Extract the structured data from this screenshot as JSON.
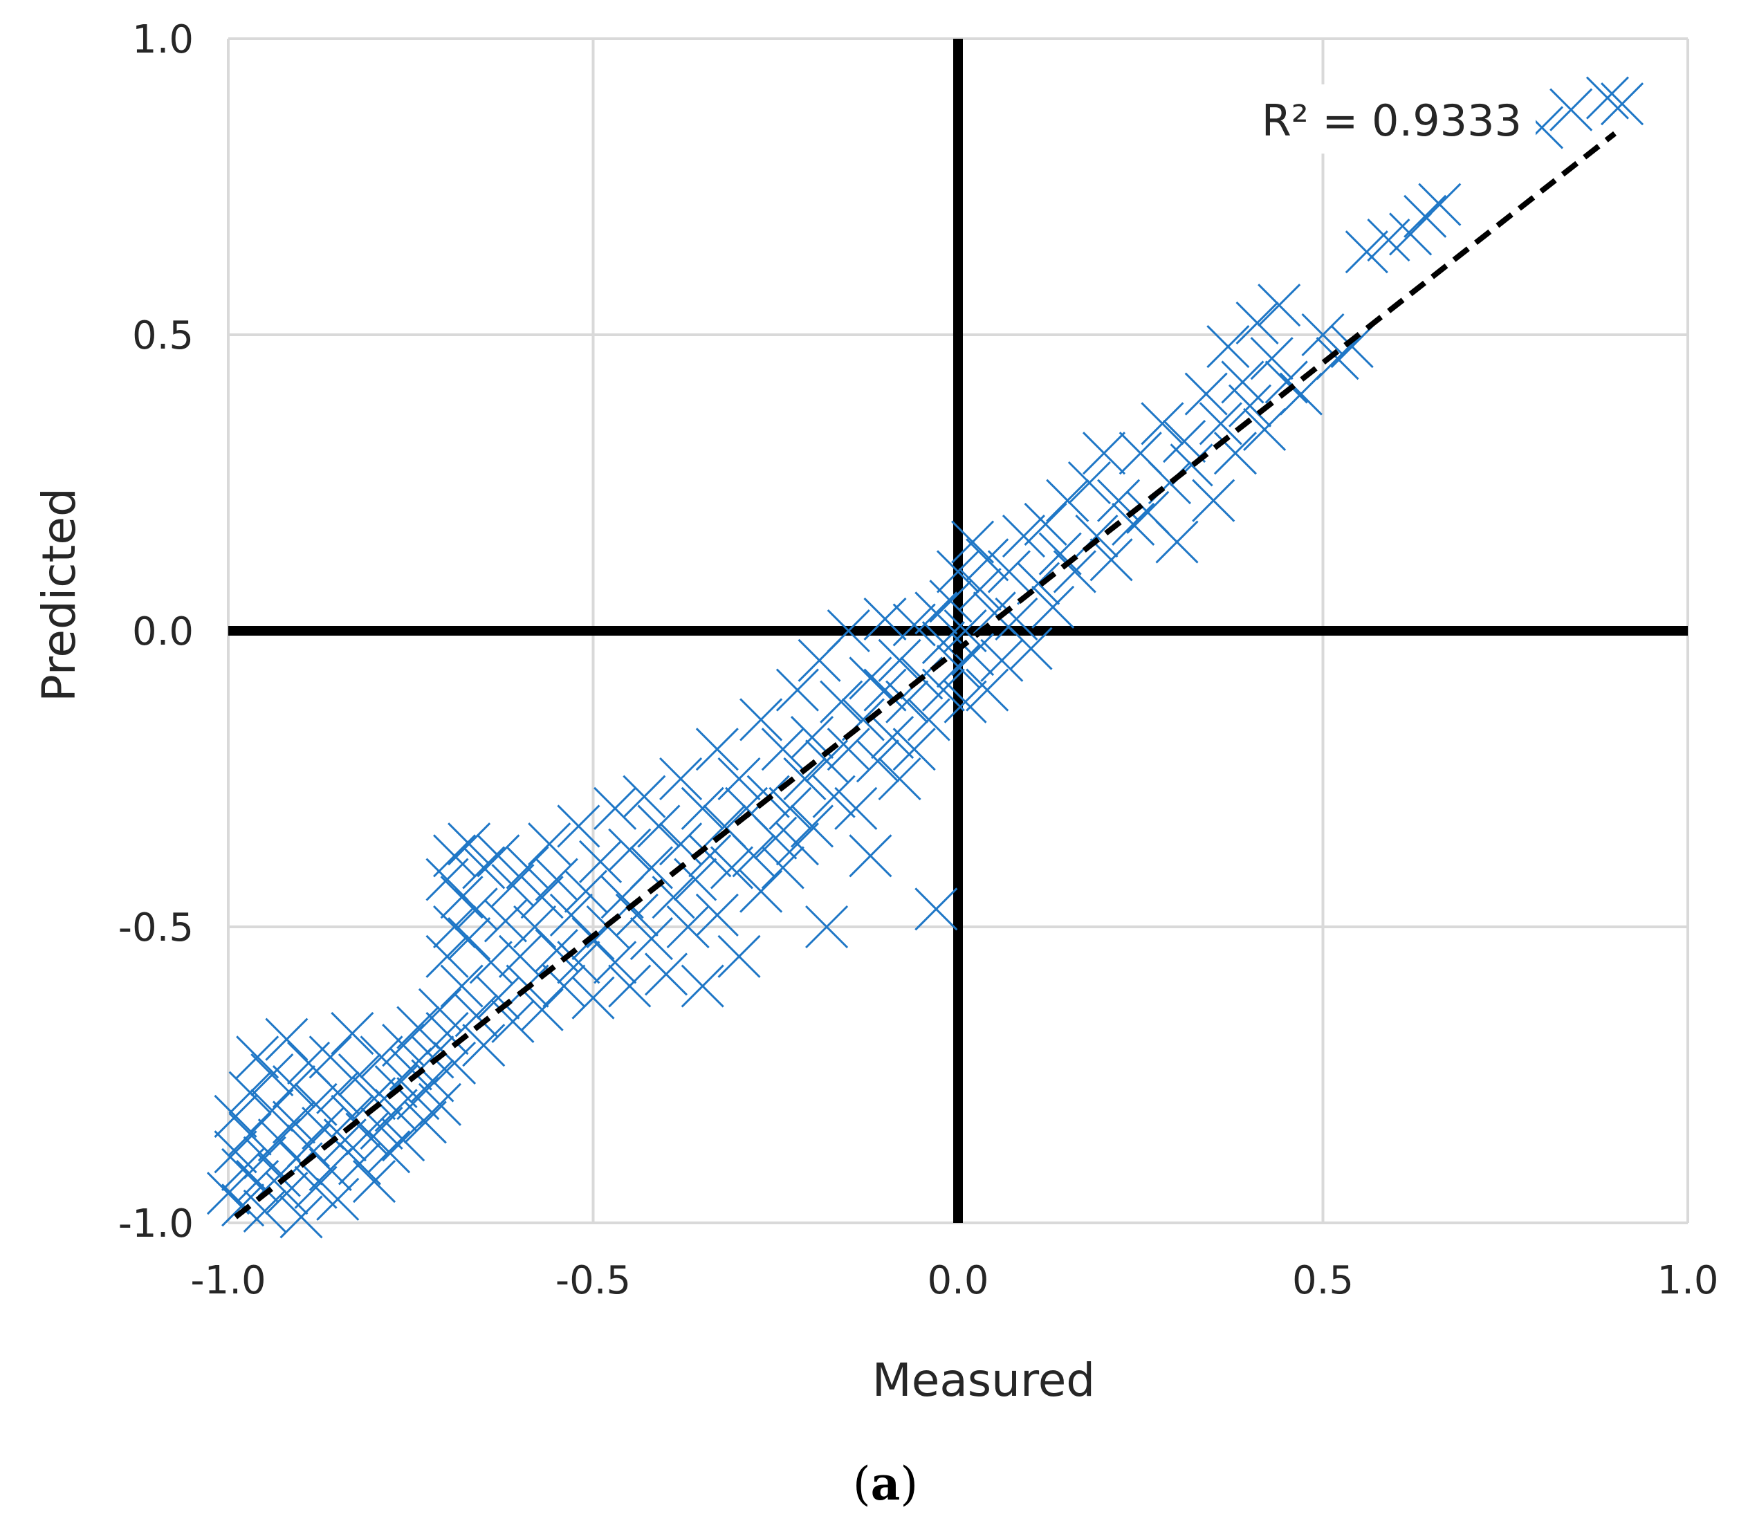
{
  "chart_data": {
    "type": "scatter",
    "xlabel": "Measured",
    "ylabel": "Predicted",
    "xlim": [
      -1.0,
      1.0
    ],
    "ylim": [
      -1.0,
      1.0
    ],
    "x_ticks": [
      -1.0,
      -0.5,
      0.0,
      0.5,
      1.0
    ],
    "y_ticks": [
      -1.0,
      -0.5,
      0.0,
      0.5,
      1.0
    ],
    "x_tick_labels": [
      "-1.0",
      "-0.5",
      "0.0",
      "0.5",
      "1.0"
    ],
    "y_tick_labels": [
      "-1.0",
      "-0.5",
      "0.0",
      "0.5",
      "1.0"
    ],
    "grid": true,
    "marker": "x",
    "marker_color": "#1f77c6",
    "zero_line_color": "#000000",
    "trendline": {
      "style": "dashed",
      "color": "#000000",
      "x": [
        -0.99,
        0.9
      ],
      "y": [
        -0.99,
        0.84
      ],
      "r_squared_label": "R² = 0.9333"
    },
    "points": [
      [
        -1.0,
        -0.95
      ],
      [
        -0.99,
        -0.88
      ],
      [
        -0.99,
        -0.82
      ],
      [
        -0.98,
        -0.97
      ],
      [
        -0.98,
        -0.91
      ],
      [
        -0.97,
        -0.85
      ],
      [
        -0.97,
        -0.78
      ],
      [
        -0.96,
        -0.93
      ],
      [
        -0.96,
        -0.72
      ],
      [
        -0.95,
        -0.89
      ],
      [
        -0.95,
        -0.98
      ],
      [
        -0.94,
        -0.81
      ],
      [
        -0.94,
        -0.75
      ],
      [
        -0.93,
        -0.92
      ],
      [
        -0.93,
        -0.86
      ],
      [
        -0.92,
        -0.69
      ],
      [
        -0.92,
        -0.95
      ],
      [
        -0.91,
        -0.83
      ],
      [
        -0.91,
        -0.77
      ],
      [
        -0.9,
        -0.9
      ],
      [
        -0.9,
        -0.99
      ],
      [
        -0.89,
        -0.73
      ],
      [
        -0.89,
        -0.87
      ],
      [
        -0.88,
        -0.8
      ],
      [
        -0.88,
        -0.94
      ],
      [
        -0.87,
        -0.84
      ],
      [
        -0.86,
        -0.72
      ],
      [
        -0.86,
        -0.91
      ],
      [
        -0.85,
        -0.78
      ],
      [
        -0.85,
        -0.96
      ],
      [
        -0.84,
        -0.86
      ],
      [
        -0.83,
        -0.68
      ],
      [
        -0.83,
        -0.82
      ],
      [
        -0.82,
        -0.9
      ],
      [
        -0.82,
        -0.75
      ],
      [
        -0.81,
        -0.85
      ],
      [
        -0.8,
        -0.79
      ],
      [
        -0.8,
        -0.93
      ],
      [
        -0.79,
        -0.72
      ],
      [
        -0.79,
        -0.84
      ],
      [
        -0.78,
        -0.88
      ],
      [
        -0.77,
        -0.77
      ],
      [
        -0.77,
        -0.81
      ],
      [
        -0.76,
        -0.7
      ],
      [
        -0.76,
        -0.86
      ],
      [
        -0.75,
        -0.74
      ],
      [
        -0.74,
        -0.79
      ],
      [
        -0.74,
        -0.67
      ],
      [
        -0.73,
        -0.83
      ],
      [
        -0.72,
        -0.72
      ],
      [
        -0.72,
        -0.76
      ],
      [
        -0.71,
        -0.64
      ],
      [
        -0.71,
        -0.8
      ],
      [
        -0.7,
        -0.42
      ],
      [
        -0.7,
        -0.55
      ],
      [
        -0.7,
        -0.68
      ],
      [
        -0.69,
        -0.38
      ],
      [
        -0.69,
        -0.5
      ],
      [
        -0.69,
        -0.73
      ],
      [
        -0.68,
        -0.45
      ],
      [
        -0.68,
        -0.6
      ],
      [
        -0.67,
        -0.36
      ],
      [
        -0.67,
        -0.52
      ],
      [
        -0.66,
        -0.65
      ],
      [
        -0.66,
        -0.47
      ],
      [
        -0.65,
        -0.4
      ],
      [
        -0.65,
        -0.7
      ],
      [
        -0.64,
        -0.56
      ],
      [
        -0.63,
        -0.38
      ],
      [
        -0.63,
        -0.62
      ],
      [
        -0.62,
        -0.49
      ],
      [
        -0.61,
        -0.43
      ],
      [
        -0.61,
        -0.66
      ],
      [
        -0.6,
        -0.55
      ],
      [
        -0.59,
        -0.4
      ],
      [
        -0.59,
        -0.6
      ],
      [
        -0.58,
        -0.5
      ],
      [
        -0.57,
        -0.45
      ],
      [
        -0.57,
        -0.64
      ],
      [
        -0.56,
        -0.36
      ],
      [
        -0.55,
        -0.54
      ],
      [
        -0.55,
        -0.42
      ],
      [
        -0.54,
        -0.6
      ],
      [
        -0.53,
        -0.48
      ],
      [
        -0.52,
        -0.33
      ],
      [
        -0.52,
        -0.56
      ],
      [
        -0.51,
        -0.44
      ],
      [
        -0.5,
        -0.52
      ],
      [
        -0.5,
        -0.62
      ],
      [
        -0.49,
        -0.39
      ],
      [
        -0.48,
        -0.5
      ],
      [
        -0.47,
        -0.3
      ],
      [
        -0.47,
        -0.56
      ],
      [
        -0.46,
        -0.45
      ],
      [
        -0.45,
        -0.37
      ],
      [
        -0.45,
        -0.6
      ],
      [
        -0.44,
        -0.48
      ],
      [
        -0.43,
        -0.28
      ],
      [
        -0.42,
        -0.52
      ],
      [
        -0.42,
        -0.4
      ],
      [
        -0.41,
        -0.33
      ],
      [
        -0.4,
        -0.58
      ],
      [
        -0.39,
        -0.45
      ],
      [
        -0.38,
        -0.25
      ],
      [
        -0.38,
        -0.36
      ],
      [
        -0.37,
        -0.5
      ],
      [
        -0.36,
        -0.42
      ],
      [
        -0.35,
        -0.3
      ],
      [
        -0.35,
        -0.6
      ],
      [
        -0.34,
        -0.38
      ],
      [
        -0.33,
        -0.2
      ],
      [
        -0.33,
        -0.48
      ],
      [
        -0.32,
        -0.33
      ],
      [
        -0.31,
        -0.4
      ],
      [
        -0.3,
        -0.25
      ],
      [
        -0.3,
        -0.55
      ],
      [
        -0.29,
        -0.3
      ],
      [
        -0.28,
        -0.38
      ],
      [
        -0.27,
        -0.15
      ],
      [
        -0.27,
        -0.44
      ],
      [
        -0.26,
        -0.28
      ],
      [
        -0.25,
        -0.35
      ],
      [
        -0.24,
        -0.2
      ],
      [
        -0.24,
        -0.4
      ],
      [
        -0.23,
        -0.3
      ],
      [
        -0.22,
        -0.1
      ],
      [
        -0.22,
        -0.36
      ],
      [
        -0.21,
        -0.25
      ],
      [
        -0.2,
        -0.18
      ],
      [
        -0.2,
        -0.33
      ],
      [
        -0.19,
        -0.05
      ],
      [
        -0.18,
        -0.22
      ],
      [
        -0.18,
        -0.5
      ],
      [
        -0.17,
        -0.28
      ],
      [
        -0.16,
        -0.12
      ],
      [
        -0.15,
        -0.2
      ],
      [
        -0.15,
        0.0
      ],
      [
        -0.14,
        -0.3
      ],
      [
        -0.13,
        -0.15
      ],
      [
        -0.12,
        -0.08
      ],
      [
        -0.12,
        -0.38
      ],
      [
        -0.11,
        -0.22
      ],
      [
        -0.1,
        -0.1
      ],
      [
        -0.1,
        0.02
      ],
      [
        -0.09,
        -0.18
      ],
      [
        -0.08,
        -0.05
      ],
      [
        -0.08,
        -0.25
      ],
      [
        -0.07,
        -0.12
      ],
      [
        -0.06,
        0.01
      ],
      [
        -0.06,
        -0.2
      ],
      [
        -0.05,
        -0.08
      ],
      [
        -0.04,
        -0.15
      ],
      [
        -0.03,
        -0.47
      ],
      [
        -0.03,
        0.03
      ],
      [
        -0.02,
        -0.1
      ],
      [
        -0.02,
        -0.02
      ],
      [
        -0.01,
        0.05
      ],
      [
        0.0,
        -0.06
      ],
      [
        0.0,
        0.1
      ],
      [
        0.01,
        -0.12
      ],
      [
        0.01,
        0.0
      ],
      [
        0.02,
        0.15
      ],
      [
        0.02,
        -0.04
      ],
      [
        0.03,
        0.07
      ],
      [
        0.04,
        -0.1
      ],
      [
        0.04,
        0.12
      ],
      [
        0.05,
        0.03
      ],
      [
        0.06,
        -0.05
      ],
      [
        0.07,
        0.1
      ],
      [
        0.08,
        0.02
      ],
      [
        0.09,
        0.16
      ],
      [
        0.1,
        -0.03
      ],
      [
        0.11,
        0.08
      ],
      [
        0.12,
        0.18
      ],
      [
        0.13,
        0.04
      ],
      [
        0.14,
        0.13
      ],
      [
        0.15,
        0.22
      ],
      [
        0.16,
        0.1
      ],
      [
        0.18,
        0.25
      ],
      [
        0.19,
        0.16
      ],
      [
        0.2,
        0.3
      ],
      [
        0.21,
        0.12
      ],
      [
        0.22,
        0.22
      ],
      [
        0.24,
        0.18
      ],
      [
        0.25,
        0.3
      ],
      [
        0.26,
        0.2
      ],
      [
        0.28,
        0.35
      ],
      [
        0.29,
        0.25
      ],
      [
        0.3,
        0.15
      ],
      [
        0.31,
        0.32
      ],
      [
        0.32,
        0.28
      ],
      [
        0.34,
        0.4
      ],
      [
        0.35,
        0.22
      ],
      [
        0.36,
        0.35
      ],
      [
        0.37,
        0.48
      ],
      [
        0.38,
        0.3
      ],
      [
        0.39,
        0.42
      ],
      [
        0.4,
        0.38
      ],
      [
        0.41,
        0.52
      ],
      [
        0.42,
        0.34
      ],
      [
        0.43,
        0.46
      ],
      [
        0.44,
        0.55
      ],
      [
        0.45,
        0.42
      ],
      [
        0.47,
        0.4
      ],
      [
        0.5,
        0.5
      ],
      [
        0.52,
        0.46
      ],
      [
        0.54,
        0.48
      ],
      [
        0.56,
        0.64
      ],
      [
        0.59,
        0.66
      ],
      [
        0.62,
        0.67
      ],
      [
        0.64,
        0.7
      ],
      [
        0.66,
        0.72
      ],
      [
        0.8,
        0.85
      ],
      [
        0.84,
        0.88
      ],
      [
        0.89,
        0.9
      ],
      [
        0.91,
        0.89
      ]
    ],
    "annotations": [
      "R² = 0.9333"
    ]
  },
  "caption": {
    "open": "(",
    "letter": "a",
    "close": ")"
  }
}
